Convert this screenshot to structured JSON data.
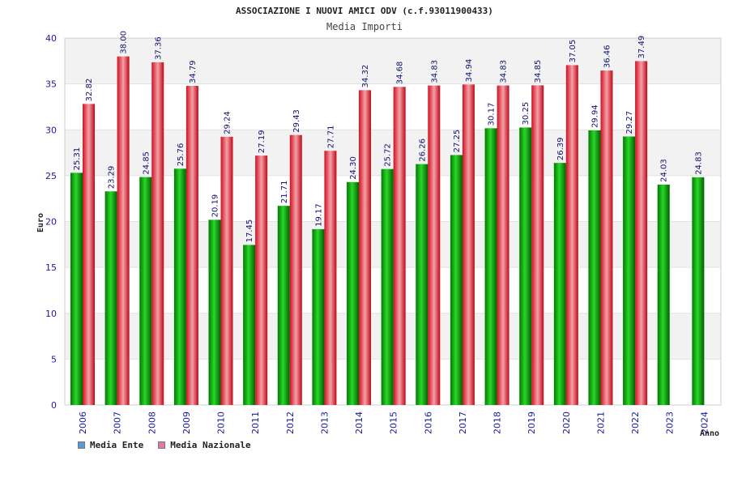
{
  "chart_data": {
    "type": "bar",
    "title": "ASSOCIAZIONE I NUOVI AMICI ODV (c.f.93011900433)",
    "subtitle": "Media Importi",
    "ylabel": "Euro",
    "xlabel": "Anno",
    "ylim": [
      0,
      40
    ],
    "yticks": [
      0,
      5,
      10,
      15,
      20,
      25,
      30,
      35,
      40
    ],
    "grid": "horizontal bands",
    "legend_position": "bottom-left",
    "categories": [
      "2006",
      "2007",
      "2008",
      "2009",
      "2010",
      "2011",
      "2012",
      "2013",
      "2014",
      "2015",
      "2016",
      "2017",
      "2018",
      "2019",
      "2020",
      "2021",
      "2022",
      "2023",
      "2024"
    ],
    "series": [
      {
        "name": "Media Ente",
        "bar_color": "#00a000",
        "legend_color": "#5b9bd5",
        "values": [
          25.31,
          23.29,
          24.85,
          25.76,
          20.19,
          17.45,
          21.71,
          19.17,
          24.3,
          25.72,
          26.26,
          27.25,
          30.17,
          30.25,
          26.39,
          29.94,
          29.27,
          24.03,
          24.83
        ],
        "labels": [
          "25.31",
          "23.29",
          "24.85",
          "25.76",
          "20.19",
          "17.45",
          "21.71",
          "19.17",
          "24.30",
          "25.72",
          "26.26",
          "27.25",
          "30.17",
          "30.25",
          "26.39",
          "29.94",
          "29.27",
          "24.03",
          "24.83"
        ]
      },
      {
        "name": "Media Nazionale",
        "bar_color": "#e8303c",
        "legend_color": "#e07aa8",
        "values": [
          32.82,
          38.0,
          37.36,
          34.79,
          29.24,
          27.19,
          29.43,
          27.71,
          34.32,
          34.68,
          34.83,
          34.94,
          34.83,
          34.85,
          37.05,
          36.46,
          37.49,
          null,
          null
        ],
        "labels": [
          "32.82",
          "38.00",
          "37.36",
          "34.79",
          "29.24",
          "27.19",
          "29.43",
          "27.71",
          "34.32",
          "34.68",
          "34.83",
          "34.94",
          "34.83",
          "34.85",
          "37.05",
          "36.46",
          "37.49",
          "",
          ""
        ]
      }
    ]
  }
}
